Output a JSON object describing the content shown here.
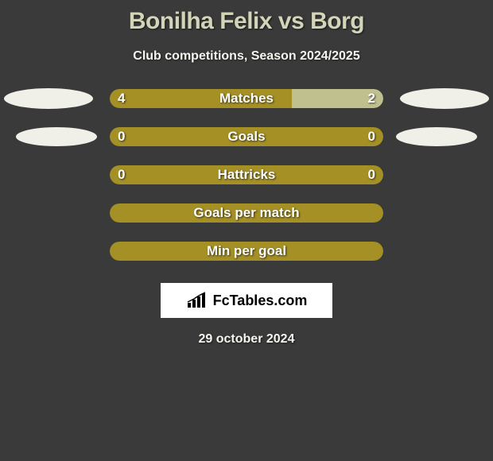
{
  "title": "Bonilha Felix vs Borg",
  "subtitle": "Club competitions, Season 2024/2025",
  "stats": [
    {
      "label": "Matches",
      "left_value": "4",
      "right_value": "2",
      "left_pct": 66.7,
      "right_pct": 33.3,
      "left_color": "#a59025",
      "right_color": "#c0c08e",
      "show_values": true,
      "show_left_ellipse": true,
      "show_right_ellipse": true,
      "left_ellipse_class": "ellipse-left",
      "right_ellipse_class": "ellipse-right"
    },
    {
      "label": "Goals",
      "left_value": "0",
      "right_value": "0",
      "left_pct": 50,
      "right_pct": 50,
      "left_color": "#a59025",
      "right_color": "#a59025",
      "show_values": true,
      "show_left_ellipse": true,
      "show_right_ellipse": true,
      "left_ellipse_class": "ellipse-left-small",
      "right_ellipse_class": "ellipse-right-small"
    },
    {
      "label": "Hattricks",
      "left_value": "0",
      "right_value": "0",
      "left_pct": 50,
      "right_pct": 50,
      "left_color": "#a59025",
      "right_color": "#a59025",
      "show_values": true,
      "show_left_ellipse": false,
      "show_right_ellipse": false,
      "left_ellipse_class": "",
      "right_ellipse_class": ""
    },
    {
      "label": "Goals per match",
      "left_value": "",
      "right_value": "",
      "left_pct": 50,
      "right_pct": 50,
      "left_color": "#a59025",
      "right_color": "#a59025",
      "show_values": false,
      "show_left_ellipse": false,
      "show_right_ellipse": false,
      "left_ellipse_class": "",
      "right_ellipse_class": ""
    },
    {
      "label": "Min per goal",
      "left_value": "",
      "right_value": "",
      "left_pct": 50,
      "right_pct": 50,
      "left_color": "#a59025",
      "right_color": "#a59025",
      "show_values": false,
      "show_left_ellipse": false,
      "show_right_ellipse": false,
      "left_ellipse_class": "",
      "right_ellipse_class": ""
    }
  ],
  "logo_text": "FcTables.com",
  "date": "29 october 2024",
  "colors": {
    "background": "#3a3a3a",
    "title_color": "#d4d4b8",
    "text_color": "#f5f5f0",
    "ellipse_color": "#f0f0e8"
  },
  "chart": {
    "type": "horizontal-comparison-bars",
    "bar_track_width": 344,
    "bar_track_height": 24,
    "bar_border_radius": 12,
    "row_gap": 24
  }
}
